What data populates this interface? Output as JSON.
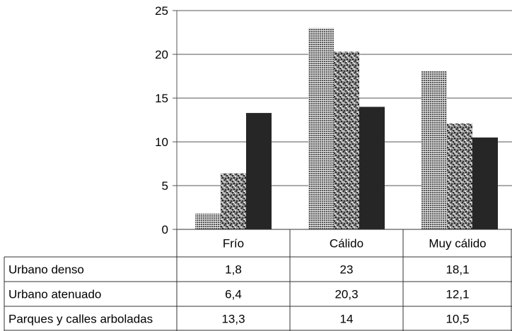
{
  "chart_data": {
    "type": "bar",
    "title": "",
    "xlabel": "",
    "ylabel": "",
    "ylim": [
      0,
      25
    ],
    "yticks": [
      0,
      5,
      10,
      15,
      20,
      25
    ],
    "grid": true,
    "legend": "data-table",
    "categories": [
      "Frío",
      "Cálido",
      "Muy cálido"
    ],
    "series": [
      {
        "name": "Urbano denso",
        "values": [
          1.8,
          23,
          18.1
        ],
        "labels": [
          "1,8",
          "23",
          "18,1"
        ],
        "pattern": "crosshatch"
      },
      {
        "name": "Urbano atenuado",
        "values": [
          6.4,
          20.3,
          12.1
        ],
        "labels": [
          "6,4",
          "20,3",
          "12,1"
        ],
        "pattern": "speckle"
      },
      {
        "name": "Parques y calles arboladas",
        "values": [
          13.3,
          14,
          10.5
        ],
        "labels": [
          "13,3",
          "14",
          "10,5"
        ],
        "color": "#262626"
      }
    ]
  }
}
